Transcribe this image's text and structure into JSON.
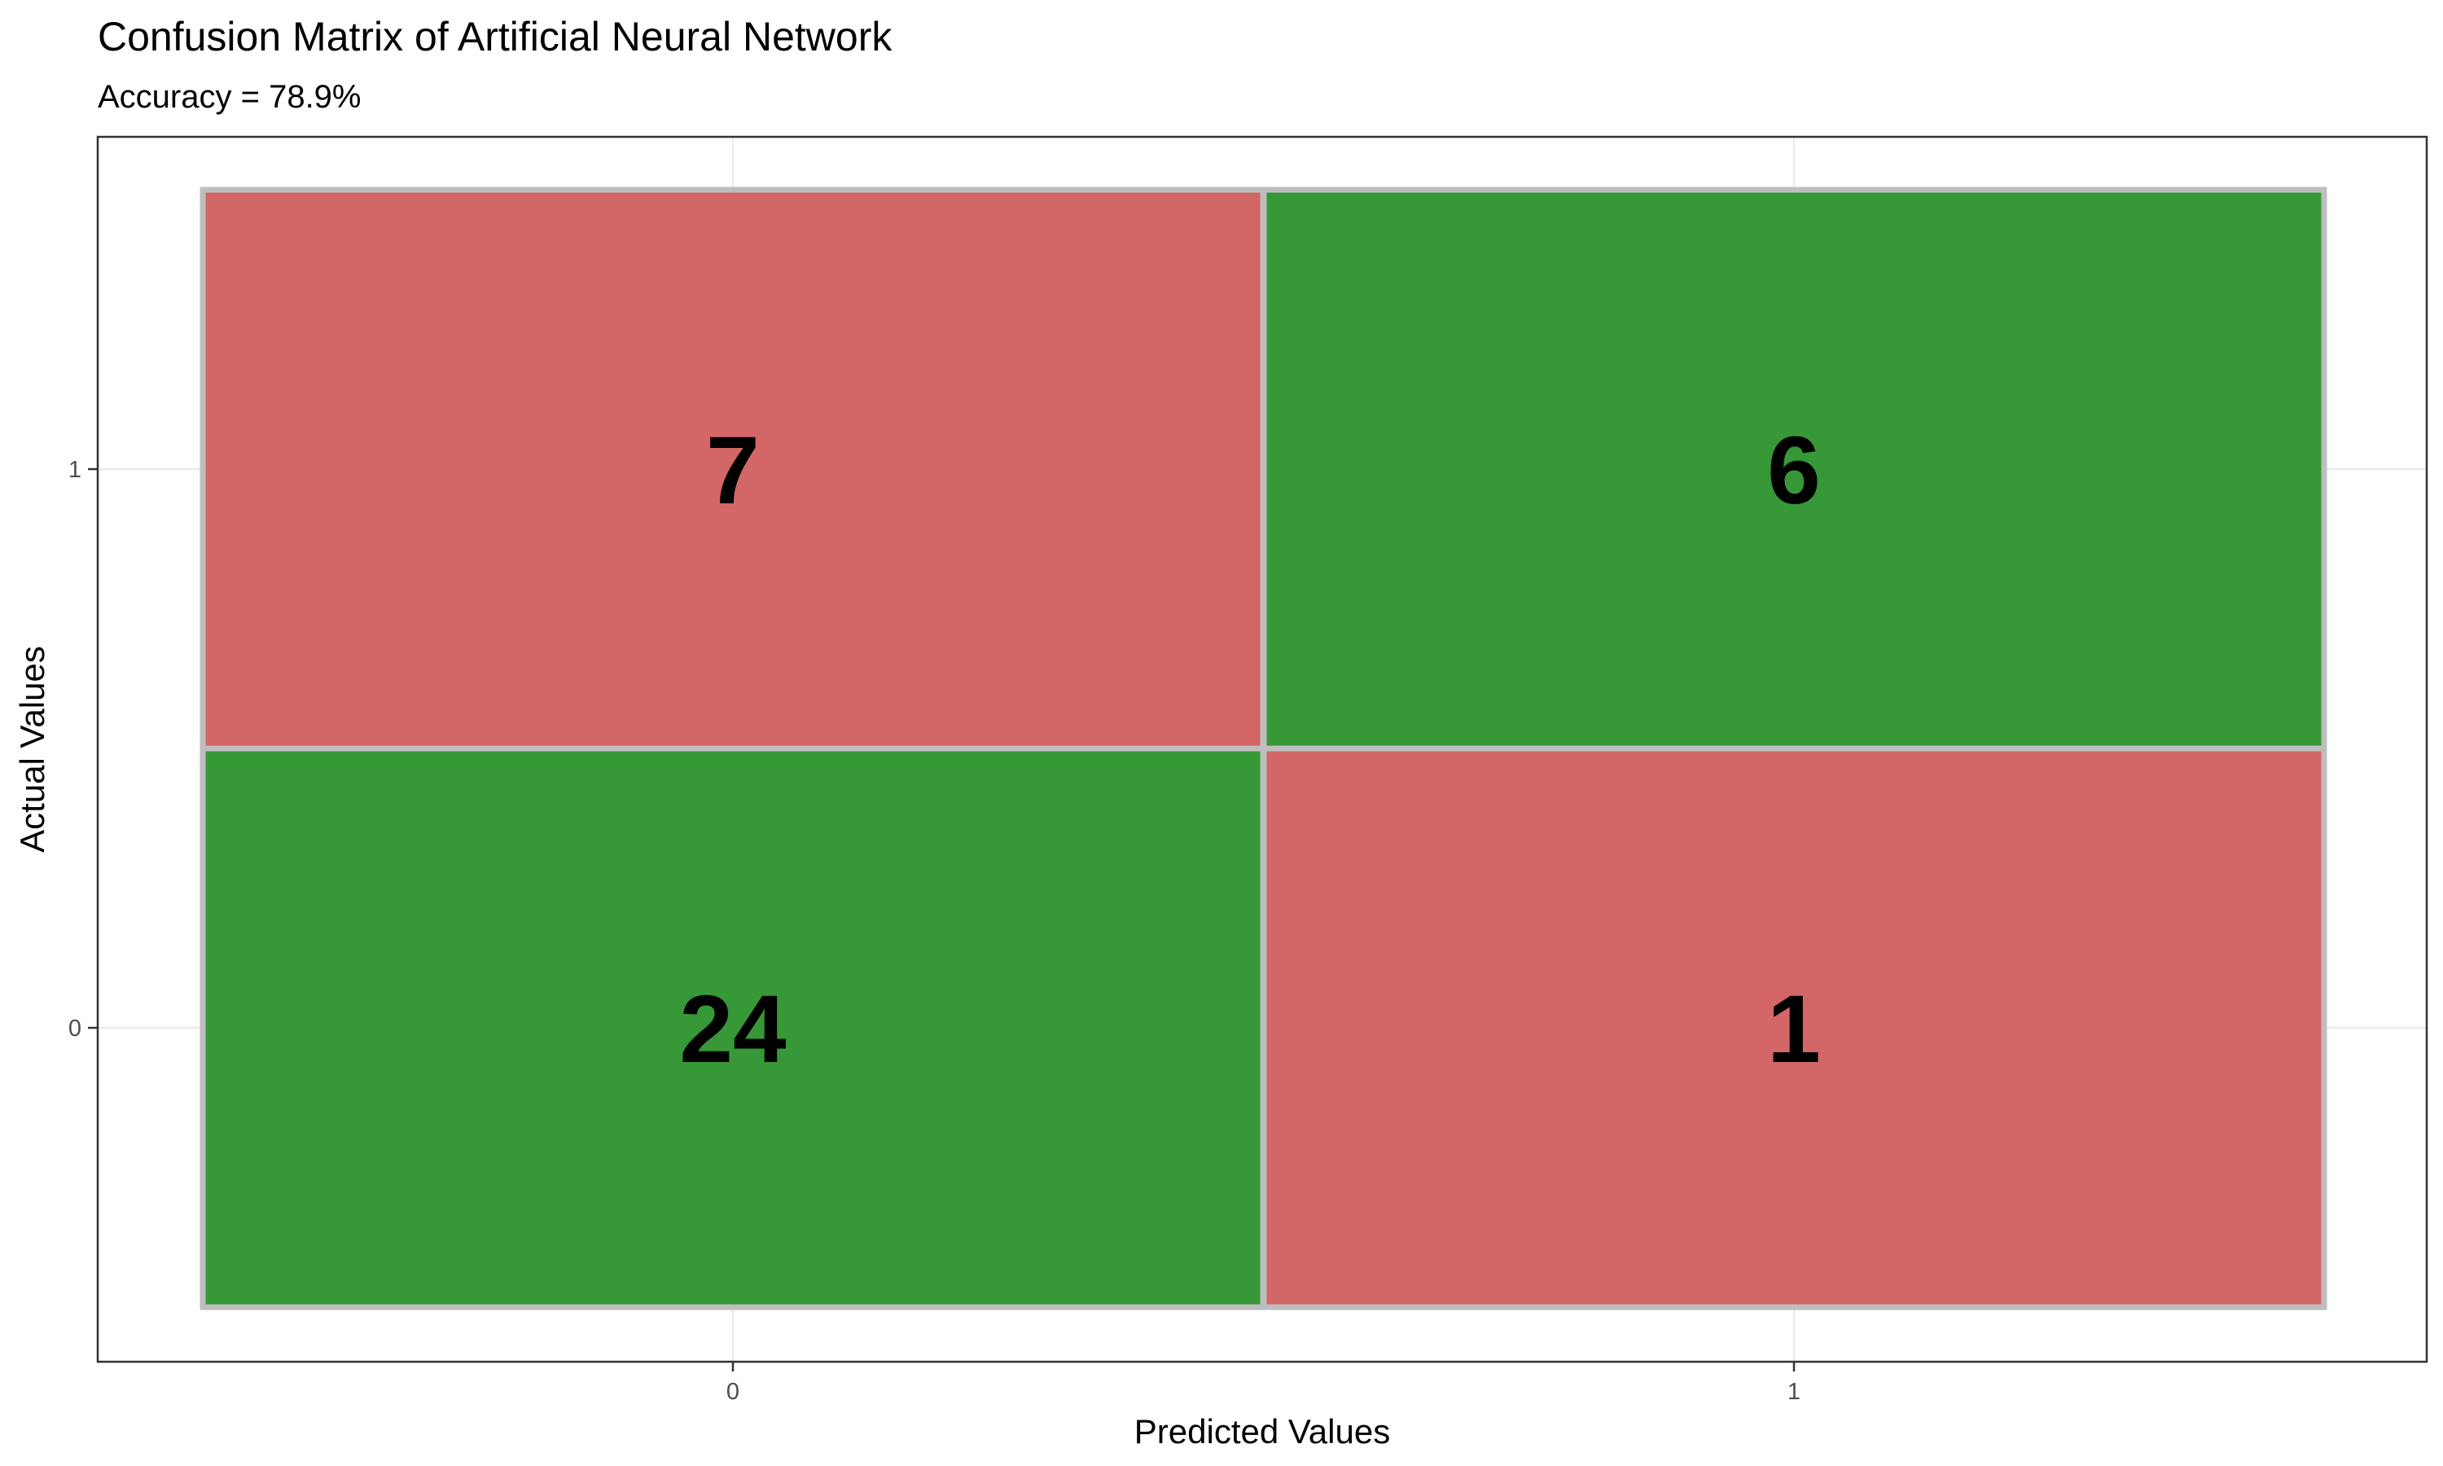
{
  "chart_data": {
    "type": "heatmap",
    "title": "Confusion Matrix of Artificial Neural Network",
    "subtitle": "Accuracy = 78.9%",
    "xlabel": "Predicted Values",
    "ylabel": "Actual Values",
    "x_categories": [
      "0",
      "1"
    ],
    "y_categories": [
      "0",
      "1"
    ],
    "cells": [
      {
        "predicted": "0",
        "actual": "1",
        "value": 7,
        "correct": false
      },
      {
        "predicted": "1",
        "actual": "1",
        "value": 6,
        "correct": true
      },
      {
        "predicted": "0",
        "actual": "0",
        "value": 24,
        "correct": true
      },
      {
        "predicted": "1",
        "actual": "0",
        "value": 1,
        "correct": false
      }
    ],
    "colors": {
      "correct": "#369836",
      "incorrect": "#d36666",
      "cell_border": "#bebebe",
      "grid": "#ebebeb",
      "panel_border": "#333333"
    },
    "grid": true,
    "legend": "none"
  }
}
